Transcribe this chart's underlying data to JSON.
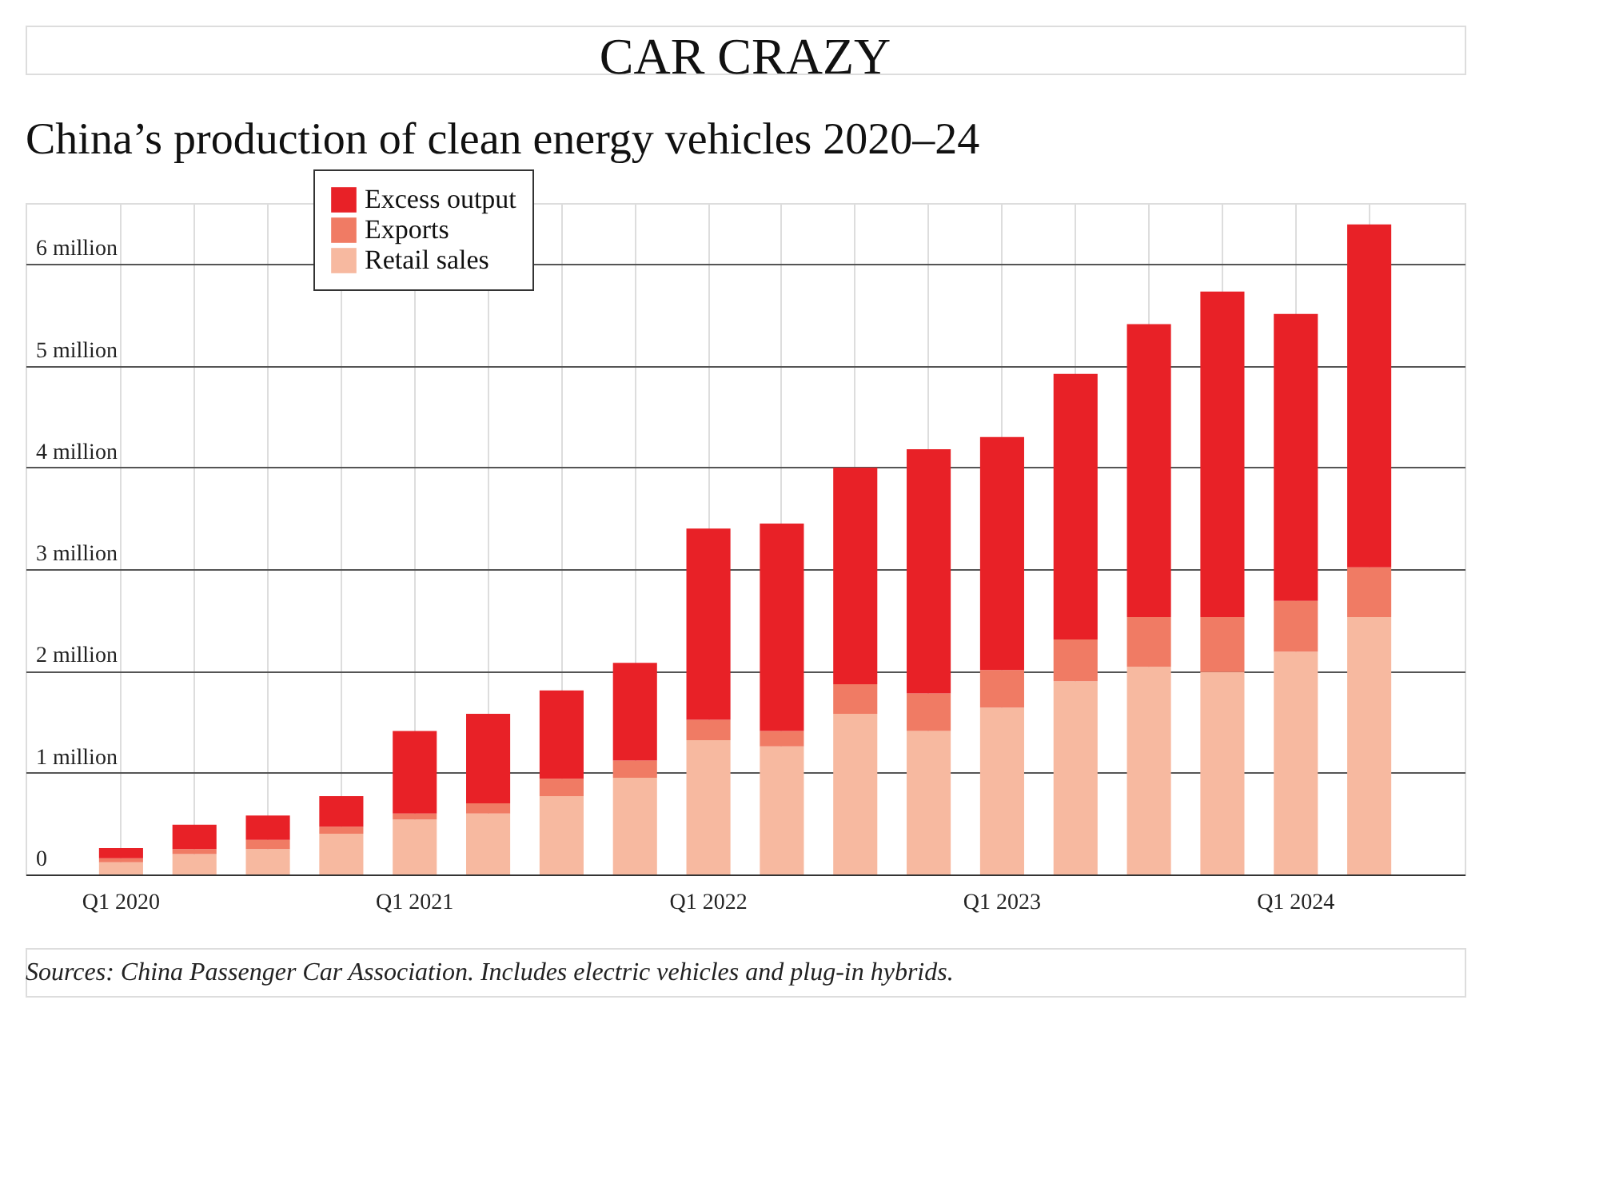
{
  "chart_data": {
    "type": "bar",
    "title": "CAR CRAZY",
    "subtitle": "China’s production of clean energy vehicles 2020–24",
    "categories": [
      "Q1 2020",
      null,
      null,
      null,
      "Q1 2021",
      null,
      null,
      null,
      "Q1 2022",
      null,
      null,
      null,
      "Q1 2023",
      null,
      null,
      null,
      "Q1 2024",
      null
    ],
    "series": [
      {
        "name": "Retail sales",
        "color": "#f7b9a0",
        "values": [
          0.12,
          0.2,
          0.25,
          0.4,
          0.54,
          0.6,
          0.77,
          0.95,
          1.32,
          1.26,
          1.58,
          1.41,
          1.64,
          1.9,
          2.04,
          1.99,
          2.19,
          2.53
        ]
      },
      {
        "name": "Exports",
        "color": "#f07b64",
        "values": [
          0.04,
          0.05,
          0.09,
          0.07,
          0.06,
          0.1,
          0.17,
          0.17,
          0.2,
          0.15,
          0.29,
          0.37,
          0.37,
          0.41,
          0.49,
          0.54,
          0.5,
          0.49
        ]
      },
      {
        "name": "Excess output",
        "color": "#e82127",
        "values": [
          0.1,
          0.24,
          0.24,
          0.3,
          0.81,
          0.88,
          0.87,
          0.96,
          1.88,
          2.04,
          2.13,
          2.4,
          2.29,
          2.61,
          2.88,
          3.2,
          2.82,
          3.37
        ]
      }
    ],
    "stacked": true,
    "ylim": [
      0,
      6.6
    ],
    "yticks": [
      0,
      {
        "value": 1,
        "label": "1 million"
      },
      {
        "value": 2,
        "label": "2 million"
      },
      {
        "value": 3,
        "label": "3 million"
      },
      {
        "value": 4,
        "label": "4 million"
      },
      {
        "value": 5,
        "label": "5 million"
      },
      {
        "value": 6,
        "label": "6 million"
      }
    ],
    "grid": true,
    "legend": "top left",
    "annotations": [
      "Sources: China Passenger Car Association. Includes electric vehicles and plug-in hybrids."
    ]
  }
}
